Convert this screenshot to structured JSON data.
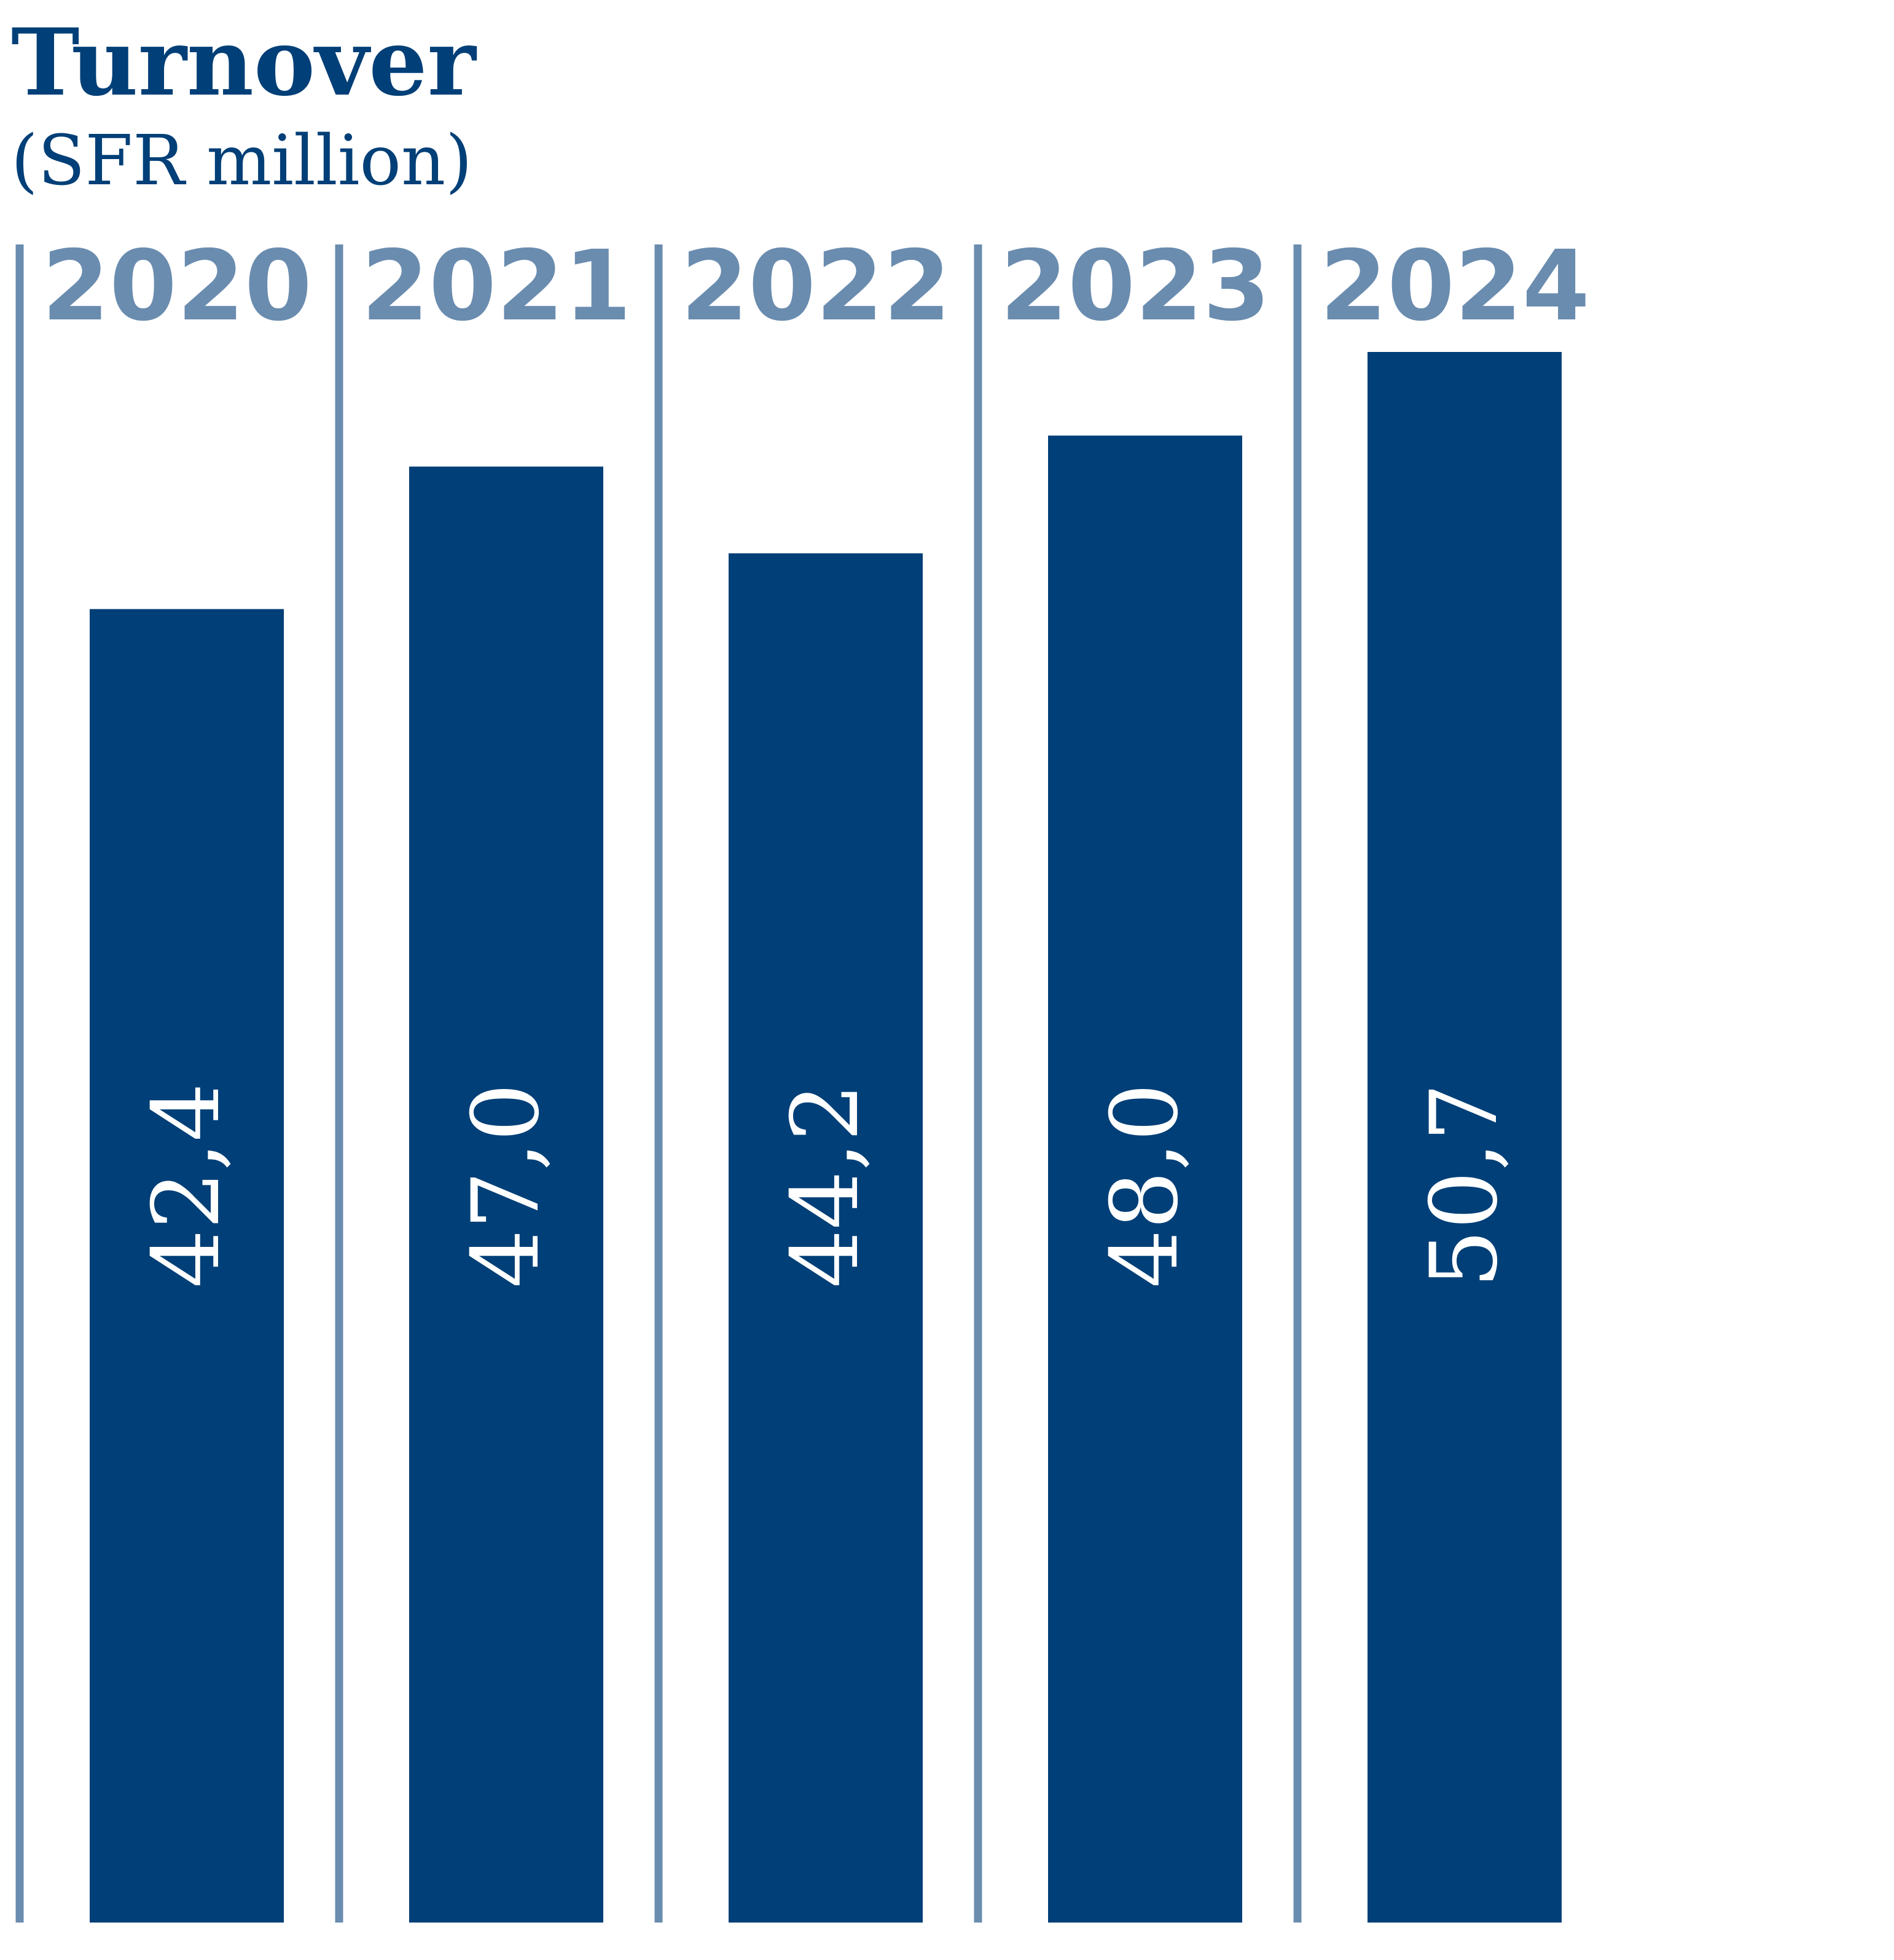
{
  "chart_data": {
    "type": "bar",
    "title": "Turnover",
    "subtitle": "(SFR million)",
    "categories": [
      "2020",
      "2021",
      "2022",
      "2023",
      "2024"
    ],
    "values": [
      42.4,
      47.0,
      44.2,
      48.0,
      50.7
    ],
    "value_labels": [
      "42,4",
      "47,0",
      "44,2",
      "48,0",
      "50,7"
    ],
    "value_label_orientation": "rotated-vertical",
    "category_label_position": "top",
    "grid": false,
    "legend": "none",
    "colors": {
      "title": "#003f77",
      "bar": "#003f77",
      "year_label": "#6a8caf",
      "divider": "#6a8caf",
      "value_label": "#ffffff"
    }
  }
}
